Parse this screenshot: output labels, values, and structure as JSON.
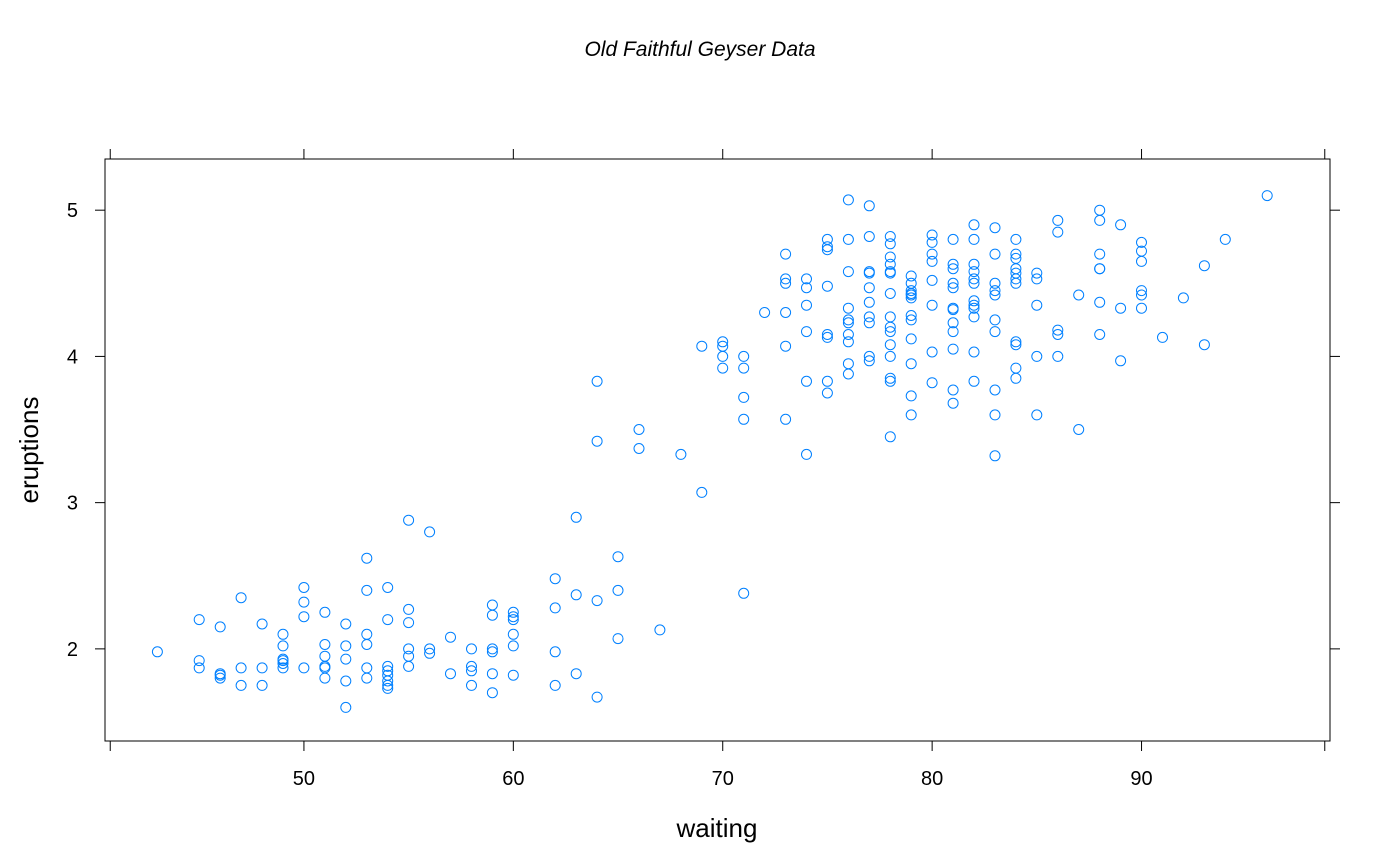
{
  "chart_data": {
    "type": "scatter",
    "title": "Old Faithful Geyser Data",
    "xlabel": "waiting",
    "ylabel": "eruptions",
    "xlim": [
      40.5,
      99
    ],
    "ylim": [
      1.37,
      5.35
    ],
    "x_ticks": [
      50,
      60,
      70,
      80,
      90
    ],
    "y_ticks": [
      2,
      3,
      4,
      5
    ],
    "x_tick_labels": [
      "50",
      "60",
      "70",
      "80",
      "90"
    ],
    "y_tick_labels": [
      "2",
      "3",
      "4",
      "5"
    ],
    "grid": false,
    "legend": "none",
    "point_color": "#0080ff",
    "series": [
      {
        "x": [
          43,
          45,
          45,
          45,
          46,
          46,
          46,
          46,
          47,
          47,
          47,
          48,
          48,
          48,
          49,
          49,
          49,
          49,
          49,
          49,
          50,
          50,
          50,
          50,
          51,
          51,
          51,
          51,
          51,
          51,
          52,
          52,
          52,
          52,
          52,
          53,
          53,
          53,
          53,
          53,
          53,
          54,
          54,
          54,
          54,
          54,
          54,
          54,
          54,
          55,
          55,
          55,
          55,
          55,
          55,
          56,
          56,
          56,
          57,
          57,
          58,
          58,
          58,
          58,
          59,
          59,
          59,
          59,
          59,
          59,
          60,
          60,
          60,
          60,
          60,
          60,
          62,
          62,
          62,
          62,
          63,
          63,
          63,
          64,
          64,
          64,
          64,
          65,
          65,
          65,
          66,
          66,
          67,
          68,
          69,
          69,
          70,
          70,
          70,
          70,
          71,
          71,
          71,
          71,
          71,
          72,
          73,
          73,
          73,
          73,
          73,
          73,
          74,
          74,
          74,
          74,
          74,
          74,
          75,
          75,
          75,
          75,
          75,
          75,
          75,
          75,
          76,
          76,
          76,
          76,
          76,
          76,
          76,
          76,
          76,
          76,
          77,
          77,
          77,
          77,
          77,
          77,
          77,
          77,
          77,
          77,
          78,
          78,
          78,
          78,
          78,
          78,
          78,
          78,
          78,
          78,
          78,
          78,
          78,
          78,
          78,
          79,
          79,
          79,
          79,
          79,
          79,
          79,
          79,
          79,
          79,
          79,
          79,
          80,
          80,
          80,
          80,
          80,
          80,
          80,
          80,
          81,
          81,
          81,
          81,
          81,
          81,
          81,
          81,
          81,
          81,
          81,
          81,
          82,
          82,
          82,
          82,
          82,
          82,
          82,
          82,
          82,
          82,
          82,
          82,
          83,
          83,
          83,
          83,
          83,
          83,
          83,
          83,
          83,
          83,
          84,
          84,
          84,
          84,
          84,
          84,
          84,
          84,
          84,
          84,
          84,
          85,
          85,
          85,
          85,
          85,
          86,
          86,
          86,
          86,
          86,
          87,
          87,
          88,
          88,
          88,
          88,
          88,
          88,
          88,
          89,
          89,
          89,
          90,
          90,
          90,
          90,
          90,
          90,
          91,
          92,
          93,
          93,
          94,
          96
        ],
        "y": [
          1.98,
          2.2,
          1.92,
          1.87,
          2.15,
          1.83,
          1.8,
          1.82,
          2.35,
          1.87,
          1.75,
          2.17,
          1.87,
          1.75,
          2.1,
          2.02,
          1.93,
          1.9,
          1.87,
          1.92,
          2.42,
          2.32,
          2.22,
          1.87,
          2.25,
          2.03,
          1.95,
          1.88,
          1.87,
          1.8,
          2.17,
          2.02,
          1.93,
          1.78,
          1.6,
          2.62,
          2.4,
          2.1,
          2.03,
          1.87,
          1.8,
          2.42,
          2.2,
          1.88,
          1.85,
          1.82,
          1.78,
          1.75,
          1.73,
          2.88,
          2.27,
          2.18,
          2.0,
          1.95,
          1.88,
          2.8,
          2.0,
          1.97,
          2.08,
          1.83,
          2.0,
          1.88,
          1.85,
          1.75,
          2.3,
          2.23,
          2.0,
          1.98,
          1.83,
          1.7,
          2.25,
          2.22,
          2.2,
          2.1,
          2.02,
          1.82,
          2.48,
          2.28,
          1.98,
          1.75,
          2.9,
          2.37,
          1.83,
          3.83,
          3.42,
          2.33,
          1.67,
          2.63,
          2.4,
          2.07,
          3.5,
          3.37,
          2.13,
          3.33,
          4.07,
          3.07,
          4.1,
          4.07,
          4.0,
          3.92,
          4.0,
          3.92,
          3.72,
          3.57,
          2.38,
          4.3,
          4.7,
          4.53,
          4.5,
          4.3,
          4.07,
          3.57,
          4.53,
          4.47,
          4.35,
          4.17,
          3.83,
          3.33,
          4.8,
          4.75,
          4.73,
          4.48,
          4.15,
          4.13,
          3.83,
          3.75,
          5.07,
          4.8,
          4.58,
          4.33,
          4.23,
          4.15,
          4.1,
          3.95,
          3.88,
          4.25,
          5.03,
          4.82,
          4.58,
          4.57,
          4.47,
          4.37,
          4.27,
          4.23,
          4.0,
          3.97,
          4.82,
          4.77,
          4.68,
          4.63,
          4.58,
          4.57,
          4.43,
          4.27,
          4.2,
          4.17,
          4.08,
          4.0,
          3.85,
          3.83,
          3.45,
          4.55,
          4.5,
          4.45,
          4.43,
          4.28,
          4.25,
          4.12,
          3.95,
          3.73,
          3.6,
          4.4,
          4.42,
          4.83,
          4.7,
          4.65,
          4.52,
          4.35,
          4.03,
          3.82,
          4.78,
          4.8,
          4.63,
          4.6,
          4.5,
          4.33,
          4.32,
          4.23,
          4.17,
          4.05,
          3.77,
          3.68,
          4.47,
          4.9,
          4.8,
          4.63,
          4.53,
          4.5,
          4.38,
          4.35,
          4.33,
          4.27,
          4.03,
          3.83,
          4.58,
          4.88,
          4.7,
          4.5,
          4.45,
          4.42,
          4.25,
          4.17,
          3.77,
          3.6,
          3.32,
          4.8,
          4.7,
          4.67,
          4.57,
          4.53,
          4.5,
          4.1,
          4.08,
          3.92,
          3.85,
          4.6,
          4.57,
          4.53,
          4.35,
          4.0,
          3.6,
          4.93,
          4.85,
          4.18,
          4.15,
          4.0,
          4.42,
          3.5,
          5.0,
          4.93,
          4.7,
          4.6,
          4.37,
          4.15,
          4.6,
          4.9,
          4.33,
          3.97,
          4.78,
          4.72,
          4.65,
          4.45,
          4.42,
          4.33,
          4.13,
          4.4,
          4.62,
          4.08,
          4.8,
          5.1
        ]
      }
    ]
  }
}
